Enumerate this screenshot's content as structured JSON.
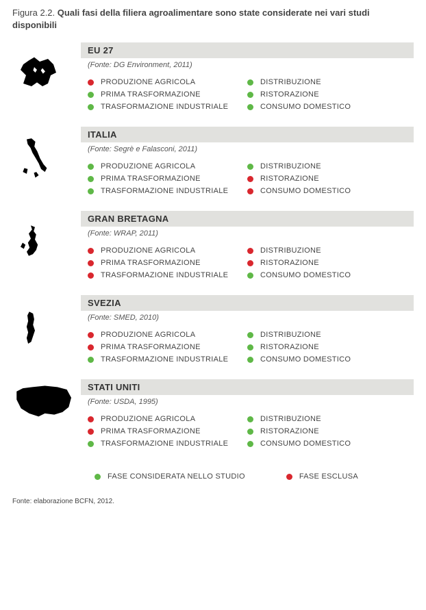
{
  "figure": {
    "label": "Figura 2.2.",
    "text": "Quali fasi della filiera agroalimentare sono state considerate nei vari studi disponibili"
  },
  "colors": {
    "green": "#5fb847",
    "red": "#d9272e",
    "header_bg": "#e1e1de"
  },
  "regions": [
    {
      "name": "EU 27",
      "source": "(Fonte: DG Environment, 2011)",
      "map_key": "eu",
      "phases_left": [
        {
          "label": "PRODUZIONE AGRICOLA",
          "color": "red"
        },
        {
          "label": "PRIMA TRASFORMAZIONE",
          "color": "green"
        },
        {
          "label": "TRASFORMAZIONE INDUSTRIALE",
          "color": "green"
        }
      ],
      "phases_right": [
        {
          "label": "DISTRIBUZIONE",
          "color": "green"
        },
        {
          "label": "RISTORAZIONE",
          "color": "green"
        },
        {
          "label": "CONSUMO DOMESTICO",
          "color": "green"
        }
      ]
    },
    {
      "name": "ITALIA",
      "source": "(Fonte: Segrè e Falasconi, 2011)",
      "map_key": "italy",
      "phases_left": [
        {
          "label": "PRODUZIONE AGRICOLA",
          "color": "green"
        },
        {
          "label": "PRIMA TRASFORMAZIONE",
          "color": "green"
        },
        {
          "label": "TRASFORMAZIONE INDUSTRIALE",
          "color": "green"
        }
      ],
      "phases_right": [
        {
          "label": "DISTRIBUZIONE",
          "color": "green"
        },
        {
          "label": "RISTORAZIONE",
          "color": "red"
        },
        {
          "label": "CONSUMO DOMESTICO",
          "color": "red"
        }
      ]
    },
    {
      "name": "GRAN BRETAGNA",
      "source": "(Fonte: WRAP, 2011)",
      "map_key": "uk",
      "phases_left": [
        {
          "label": "PRODUZIONE AGRICOLA",
          "color": "red"
        },
        {
          "label": "PRIMA TRASFORMAZIONE",
          "color": "red"
        },
        {
          "label": "TRASFORMAZIONE INDUSTRIALE",
          "color": "red"
        }
      ],
      "phases_right": [
        {
          "label": "DISTRIBUZIONE",
          "color": "red"
        },
        {
          "label": "RISTORAZIONE",
          "color": "red"
        },
        {
          "label": "CONSUMO DOMESTICO",
          "color": "green"
        }
      ]
    },
    {
      "name": "SVEZIA",
      "source": "(Fonte: SMED, 2010)",
      "map_key": "sweden",
      "phases_left": [
        {
          "label": "PRODUZIONE AGRICOLA",
          "color": "red"
        },
        {
          "label": "PRIMA TRASFORMAZIONE",
          "color": "red"
        },
        {
          "label": "TRASFORMAZIONE INDUSTRIALE",
          "color": "green"
        }
      ],
      "phases_right": [
        {
          "label": "DISTRIBUZIONE",
          "color": "green"
        },
        {
          "label": "RISTORAZIONE",
          "color": "green"
        },
        {
          "label": "CONSUMO DOMESTICO",
          "color": "green"
        }
      ]
    },
    {
      "name": "STATI UNITI",
      "source": "(Fonte: USDA, 1995)",
      "map_key": "usa",
      "phases_left": [
        {
          "label": "PRODUZIONE AGRICOLA",
          "color": "red"
        },
        {
          "label": "PRIMA TRASFORMAZIONE",
          "color": "red"
        },
        {
          "label": "TRASFORMAZIONE INDUSTRIALE",
          "color": "green"
        }
      ],
      "phases_right": [
        {
          "label": "DISTRIBUZIONE",
          "color": "green"
        },
        {
          "label": "RISTORAZIONE",
          "color": "green"
        },
        {
          "label": "CONSUMO DOMESTICO",
          "color": "green"
        }
      ]
    }
  ],
  "legend": {
    "included": "FASE CONSIDERATA NELLO STUDIO",
    "excluded": "FASE ESCLUSA"
  },
  "footer": "Fonte: elaborazione BCFN, 2012."
}
